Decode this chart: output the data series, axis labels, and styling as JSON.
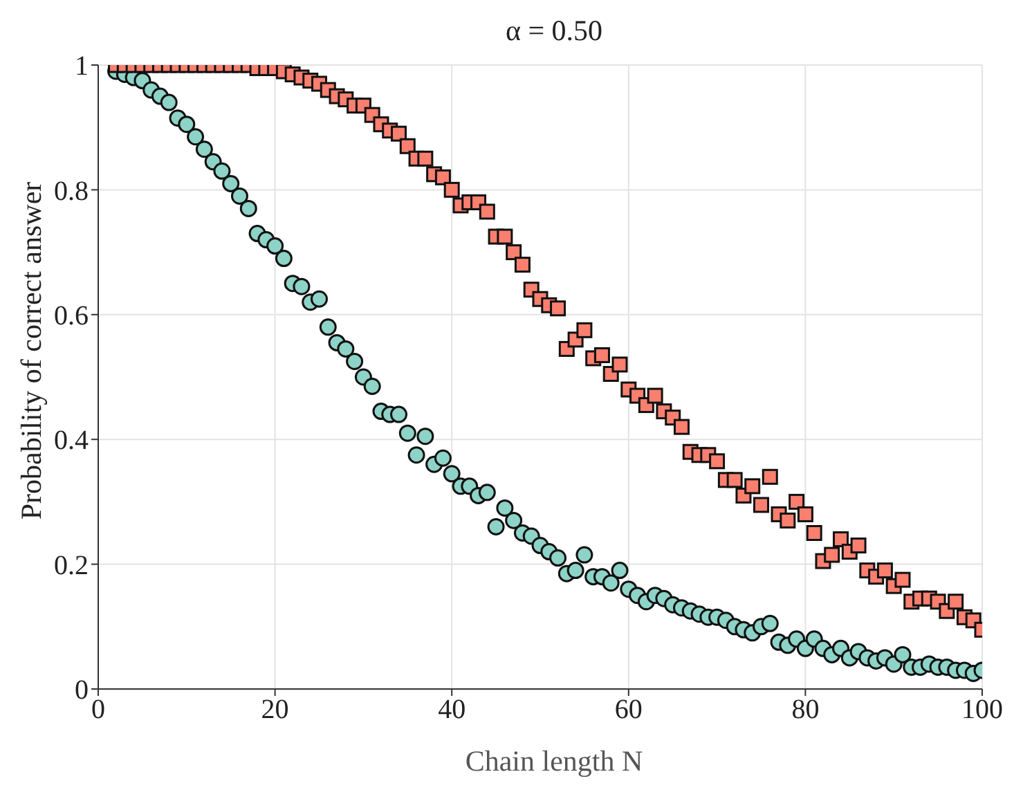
{
  "chart_data": {
    "type": "scatter",
    "title": "α = 0.50",
    "xlabel": "Chain length N",
    "ylabel": "Probability of correct answer",
    "xlim": [
      0,
      100
    ],
    "xticks": [
      0,
      20,
      40,
      60,
      80,
      100
    ],
    "ylim": [
      0,
      1
    ],
    "yticks": [
      0,
      0.2,
      0.4,
      0.6,
      0.8,
      1
    ],
    "grid": true,
    "x": [
      2,
      3,
      4,
      5,
      6,
      7,
      8,
      9,
      10,
      11,
      12,
      13,
      14,
      15,
      16,
      17,
      18,
      19,
      20,
      21,
      22,
      23,
      24,
      25,
      26,
      27,
      28,
      29,
      30,
      31,
      32,
      33,
      34,
      35,
      36,
      37,
      38,
      39,
      40,
      41,
      42,
      43,
      44,
      45,
      46,
      47,
      48,
      49,
      50,
      51,
      52,
      53,
      54,
      55,
      56,
      57,
      58,
      59,
      60,
      61,
      62,
      63,
      64,
      65,
      66,
      67,
      68,
      69,
      70,
      71,
      72,
      73,
      74,
      75,
      76,
      77,
      78,
      79,
      80,
      81,
      82,
      83,
      84,
      85,
      86,
      87,
      88,
      89,
      90,
      91,
      92,
      93,
      94,
      95,
      96,
      97,
      98,
      99,
      100
    ],
    "series": [
      {
        "color": "#fa7f6f",
        "marker": "square",
        "values": [
          1,
          1,
          1,
          1,
          1,
          1,
          1,
          1,
          1,
          1,
          1,
          1,
          1,
          1,
          1,
          1,
          0.995,
          0.995,
          0.995,
          0.99,
          0.985,
          0.98,
          0.975,
          0.97,
          0.96,
          0.95,
          0.945,
          0.935,
          0.935,
          0.92,
          0.905,
          0.895,
          0.89,
          0.87,
          0.85,
          0.85,
          0.825,
          0.82,
          0.8,
          0.775,
          0.78,
          0.78,
          0.765,
          0.725,
          0.725,
          0.7,
          0.68,
          0.64,
          0.625,
          0.615,
          0.61,
          0.545,
          0.56,
          0.575,
          0.53,
          0.535,
          0.505,
          0.52,
          0.48,
          0.47,
          0.455,
          0.47,
          0.445,
          0.435,
          0.42,
          0.38,
          0.375,
          0.375,
          0.365,
          0.335,
          0.335,
          0.31,
          0.325,
          0.295,
          0.34,
          0.28,
          0.27,
          0.3,
          0.28,
          0.25,
          0.205,
          0.215,
          0.24,
          0.22,
          0.23,
          0.19,
          0.18,
          0.19,
          0.165,
          0.175,
          0.14,
          0.145,
          0.145,
          0.14,
          0.125,
          0.14,
          0.115,
          0.11,
          0.095
        ]
      },
      {
        "color": "#8dd3c7",
        "marker": "circle",
        "values": [
          0.99,
          0.985,
          0.98,
          0.975,
          0.96,
          0.95,
          0.94,
          0.915,
          0.905,
          0.885,
          0.865,
          0.845,
          0.83,
          0.81,
          0.79,
          0.77,
          0.73,
          0.72,
          0.71,
          0.69,
          0.65,
          0.645,
          0.62,
          0.625,
          0.58,
          0.555,
          0.545,
          0.525,
          0.5,
          0.485,
          0.445,
          0.44,
          0.44,
          0.41,
          0.375,
          0.405,
          0.36,
          0.37,
          0.345,
          0.325,
          0.325,
          0.31,
          0.315,
          0.26,
          0.29,
          0.27,
          0.25,
          0.245,
          0.23,
          0.22,
          0.21,
          0.185,
          0.19,
          0.215,
          0.18,
          0.18,
          0.17,
          0.19,
          0.16,
          0.15,
          0.14,
          0.15,
          0.145,
          0.135,
          0.13,
          0.125,
          0.12,
          0.115,
          0.115,
          0.11,
          0.1,
          0.095,
          0.09,
          0.1,
          0.105,
          0.075,
          0.07,
          0.08,
          0.065,
          0.08,
          0.065,
          0.055,
          0.065,
          0.05,
          0.06,
          0.05,
          0.045,
          0.05,
          0.04,
          0.055,
          0.035,
          0.035,
          0.04,
          0.035,
          0.035,
          0.03,
          0.03,
          0.025,
          0.03
        ]
      }
    ]
  }
}
